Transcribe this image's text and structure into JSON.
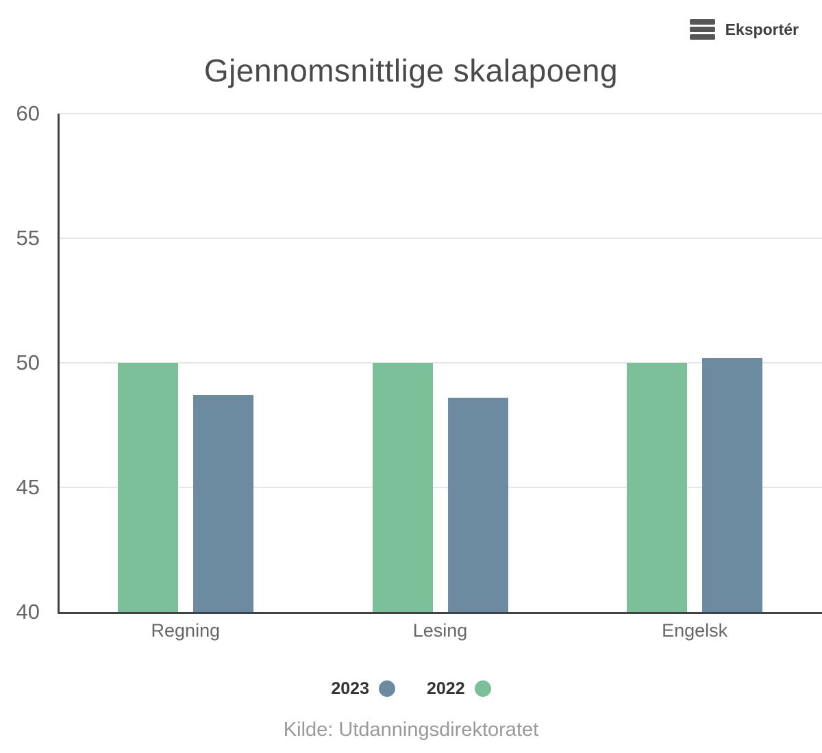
{
  "export_button": {
    "label": "Eksportér"
  },
  "chart_data": {
    "type": "bar",
    "title": "Gjennomsnittlige skalapoeng",
    "categories": [
      "Regning",
      "Lesing",
      "Engelsk"
    ],
    "series": [
      {
        "name": "2023",
        "color": "#6c8ba1",
        "values": [
          48.7,
          48.6,
          50.2
        ]
      },
      {
        "name": "2022",
        "color": "#7bc098",
        "values": [
          50,
          50,
          50
        ]
      }
    ],
    "bar_order_left_to_right": [
      "2022",
      "2023"
    ],
    "ylim": [
      40,
      60
    ],
    "yticks": [
      40,
      45,
      50,
      55,
      60
    ],
    "grid": true,
    "legend_position": "bottom",
    "source": "Kilde: Utdanningsdirektoratet"
  },
  "colors": {
    "axis": "#424242",
    "gridline": "#e6e6e6",
    "tick_label": "#666666",
    "category_label": "#666666",
    "title": "#4a4a4a",
    "legend_text": "#333333",
    "source_text": "#999999",
    "export_text": "#3f3f3f",
    "export_icon": "#565656"
  }
}
